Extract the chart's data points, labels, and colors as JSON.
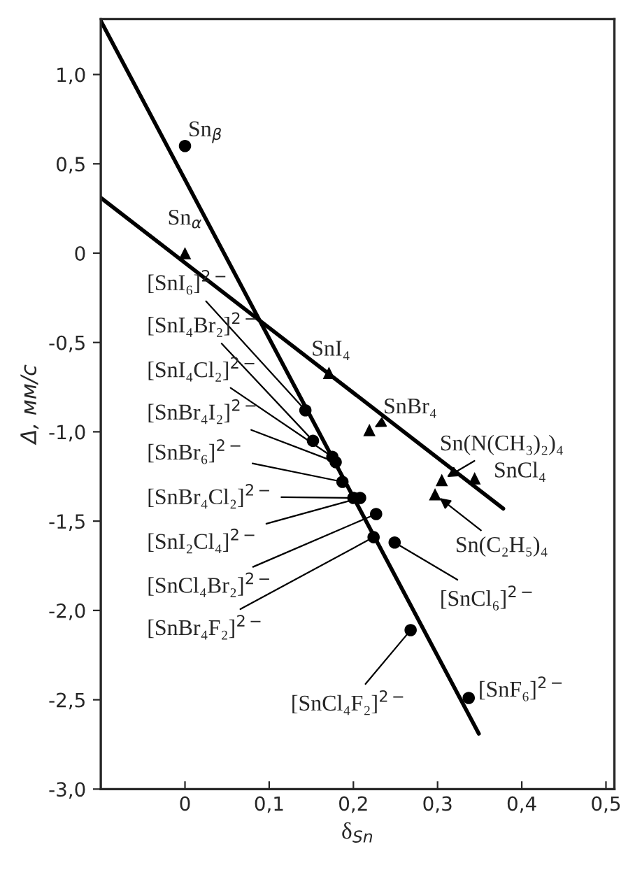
{
  "chart_data": {
    "type": "scatter",
    "xlabel": "δ$_{Sn}$",
    "ylabel": "Δ, мм/с",
    "xlim": [
      -0.1,
      0.51
    ],
    "ylim": [
      -3.0,
      1.31
    ],
    "xticks": [
      0,
      {
        "value": 0.1,
        "label": "0,1"
      },
      {
        "value": 0.2,
        "label": "0,2"
      },
      {
        "value": 0.3,
        "label": "0,3"
      },
      {
        "value": 0.4,
        "label": "0,4"
      },
      {
        "value": 0.5,
        "label": "0,5"
      }
    ],
    "yticks": [
      {
        "value": 1.0,
        "label": "1,0"
      },
      {
        "value": 0.5,
        "label": "0,5"
      },
      0,
      {
        "value": -0.5,
        "label": "-0,5"
      },
      {
        "value": -1.0,
        "label": "-1,0"
      },
      {
        "value": -1.5,
        "label": "-1,5"
      },
      {
        "value": -2.0,
        "label": "-2,0"
      },
      {
        "value": -2.5,
        "label": "-2,5"
      },
      {
        "value": -3.0,
        "label": "-3,0"
      }
    ],
    "series": [
      {
        "marker": "circle",
        "color": "#000000",
        "x": [
          0,
          0.143,
          0.152,
          0.175,
          0.179,
          0.187,
          0.2,
          0.208,
          0.227,
          0.224,
          0.249,
          0.268,
          0.337
        ],
        "values": [
          0.6,
          -0.88,
          -1.05,
          -1.14,
          -1.17,
          -1.28,
          -1.37,
          -1.37,
          -1.46,
          -1.59,
          -1.62,
          -2.11,
          -2.49
        ]
      },
      {
        "marker": "triangle",
        "color": "#000000",
        "x": [
          0,
          0.171,
          0.219,
          0.305,
          0.344,
          0.297
        ],
        "values": [
          0.0,
          -0.67,
          -0.99,
          -1.27,
          -1.26,
          -1.35
        ]
      },
      {
        "type": "line",
        "marker": "none",
        "color": "#000000",
        "x": [
          -0.1,
          0.349
        ],
        "values": [
          1.3,
          -2.69
        ]
      },
      {
        "type": "line",
        "marker": "none",
        "color": "#000000",
        "x": [
          -0.1,
          0.378
        ],
        "values": [
          0.31,
          -1.43
        ]
      }
    ],
    "annotations": [
      {
        "text": "Sn$_{β}$",
        "x": 0,
        "y": 0.6
      },
      {
        "text": "[SnI₆]$^{2−}$",
        "x": 0.143,
        "y": -0.88
      },
      {
        "text": "[SnI₄Br₂]$^{2−}$",
        "x": 0.152,
        "y": -1.05
      },
      {
        "text": "[SnI₄Cl₂]$^{2−}$",
        "x": 0.175,
        "y": -1.14
      },
      {
        "text": "[SnBr₄I₂]$^{2−}$",
        "x": 0.179,
        "y": -1.17
      },
      {
        "text": "[SnBr₆]$^{2−}$",
        "x": 0.187,
        "y": -1.28
      },
      {
        "text": "[SnBr₄Cl₂]$^{2−}$",
        "x": 0.2,
        "y": -1.37
      },
      {
        "text": "[SnI₂Cl₄]$^{2−}$",
        "x": 0.208,
        "y": -1.37
      },
      {
        "text": "[SnCl₄Br₂]$^{2−}$",
        "x": 0.227,
        "y": -1.46
      },
      {
        "text": "[SnBr₄F₂]$^{2−}$",
        "x": 0.224,
        "y": -1.59
      },
      {
        "text": "[SnCl₆]$^{2−}$",
        "x": 0.249,
        "y": -1.62
      },
      {
        "text": "[SnCl₄F₂]$^{2−}$",
        "x": 0.268,
        "y": -2.11
      },
      {
        "text": "[SnF₆]$^{2−}$",
        "x": 0.337,
        "y": -2.49
      },
      {
        "text": "Sn$_{α}$",
        "x": 0,
        "y": 0.0
      },
      {
        "text": "SnI₄",
        "x": 0.171,
        "y": -0.67
      },
      {
        "text": "SnBr₄",
        "x": 0.219,
        "y": -0.99
      },
      {
        "text": "Sn(N(CH₃)₂)₄",
        "x": 0.305,
        "y": -1.27
      },
      {
        "text": "SnCl₄",
        "x": 0.344,
        "y": -1.26
      },
      {
        "text": "Sn(C₂H₅)₄",
        "x": 0.297,
        "y": -1.35
      }
    ]
  }
}
